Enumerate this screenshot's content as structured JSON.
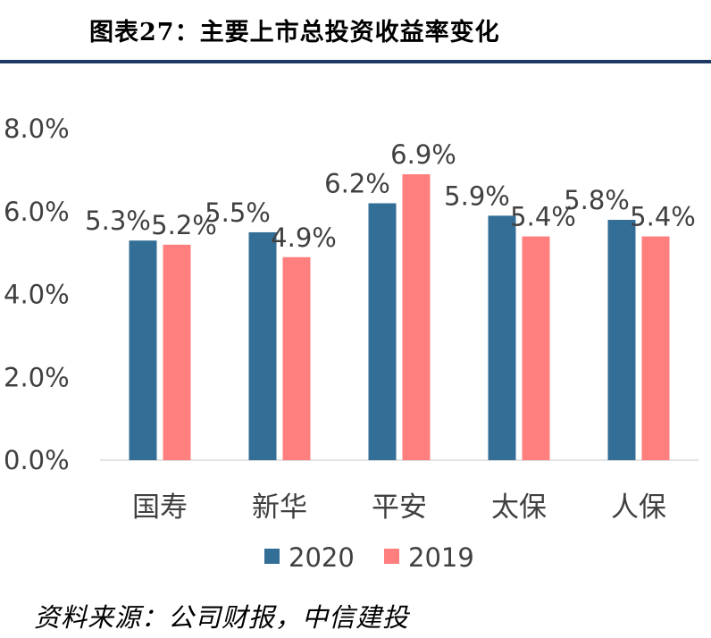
{
  "header": {
    "title": "图表27：主要上市总投资收益率变化"
  },
  "footer": {
    "source": "资料来源：公司财报，中信建投"
  },
  "chart_data": {
    "type": "bar",
    "categories": [
      "国寿",
      "新华",
      "平安",
      "太保",
      "人保"
    ],
    "series": [
      {
        "name": "2020",
        "values": [
          5.3,
          5.5,
          6.2,
          5.9,
          5.8
        ],
        "labels": [
          "5.3%",
          "5.5%",
          "6.2%",
          "5.9%",
          "5.8%"
        ],
        "color": "#336e96"
      },
      {
        "name": "2019",
        "values": [
          5.2,
          4.9,
          6.9,
          5.4,
          5.4
        ],
        "labels": [
          "5.2%",
          "4.9%",
          "6.9%",
          "5.4%",
          "5.4%"
        ],
        "color": "#ff7f7f"
      }
    ],
    "yticks": [
      "0.0%",
      "2.0%",
      "4.0%",
      "6.0%",
      "8.0%"
    ],
    "ylim": [
      0,
      8
    ],
    "gridlines": false,
    "legend_position": "bottom"
  }
}
